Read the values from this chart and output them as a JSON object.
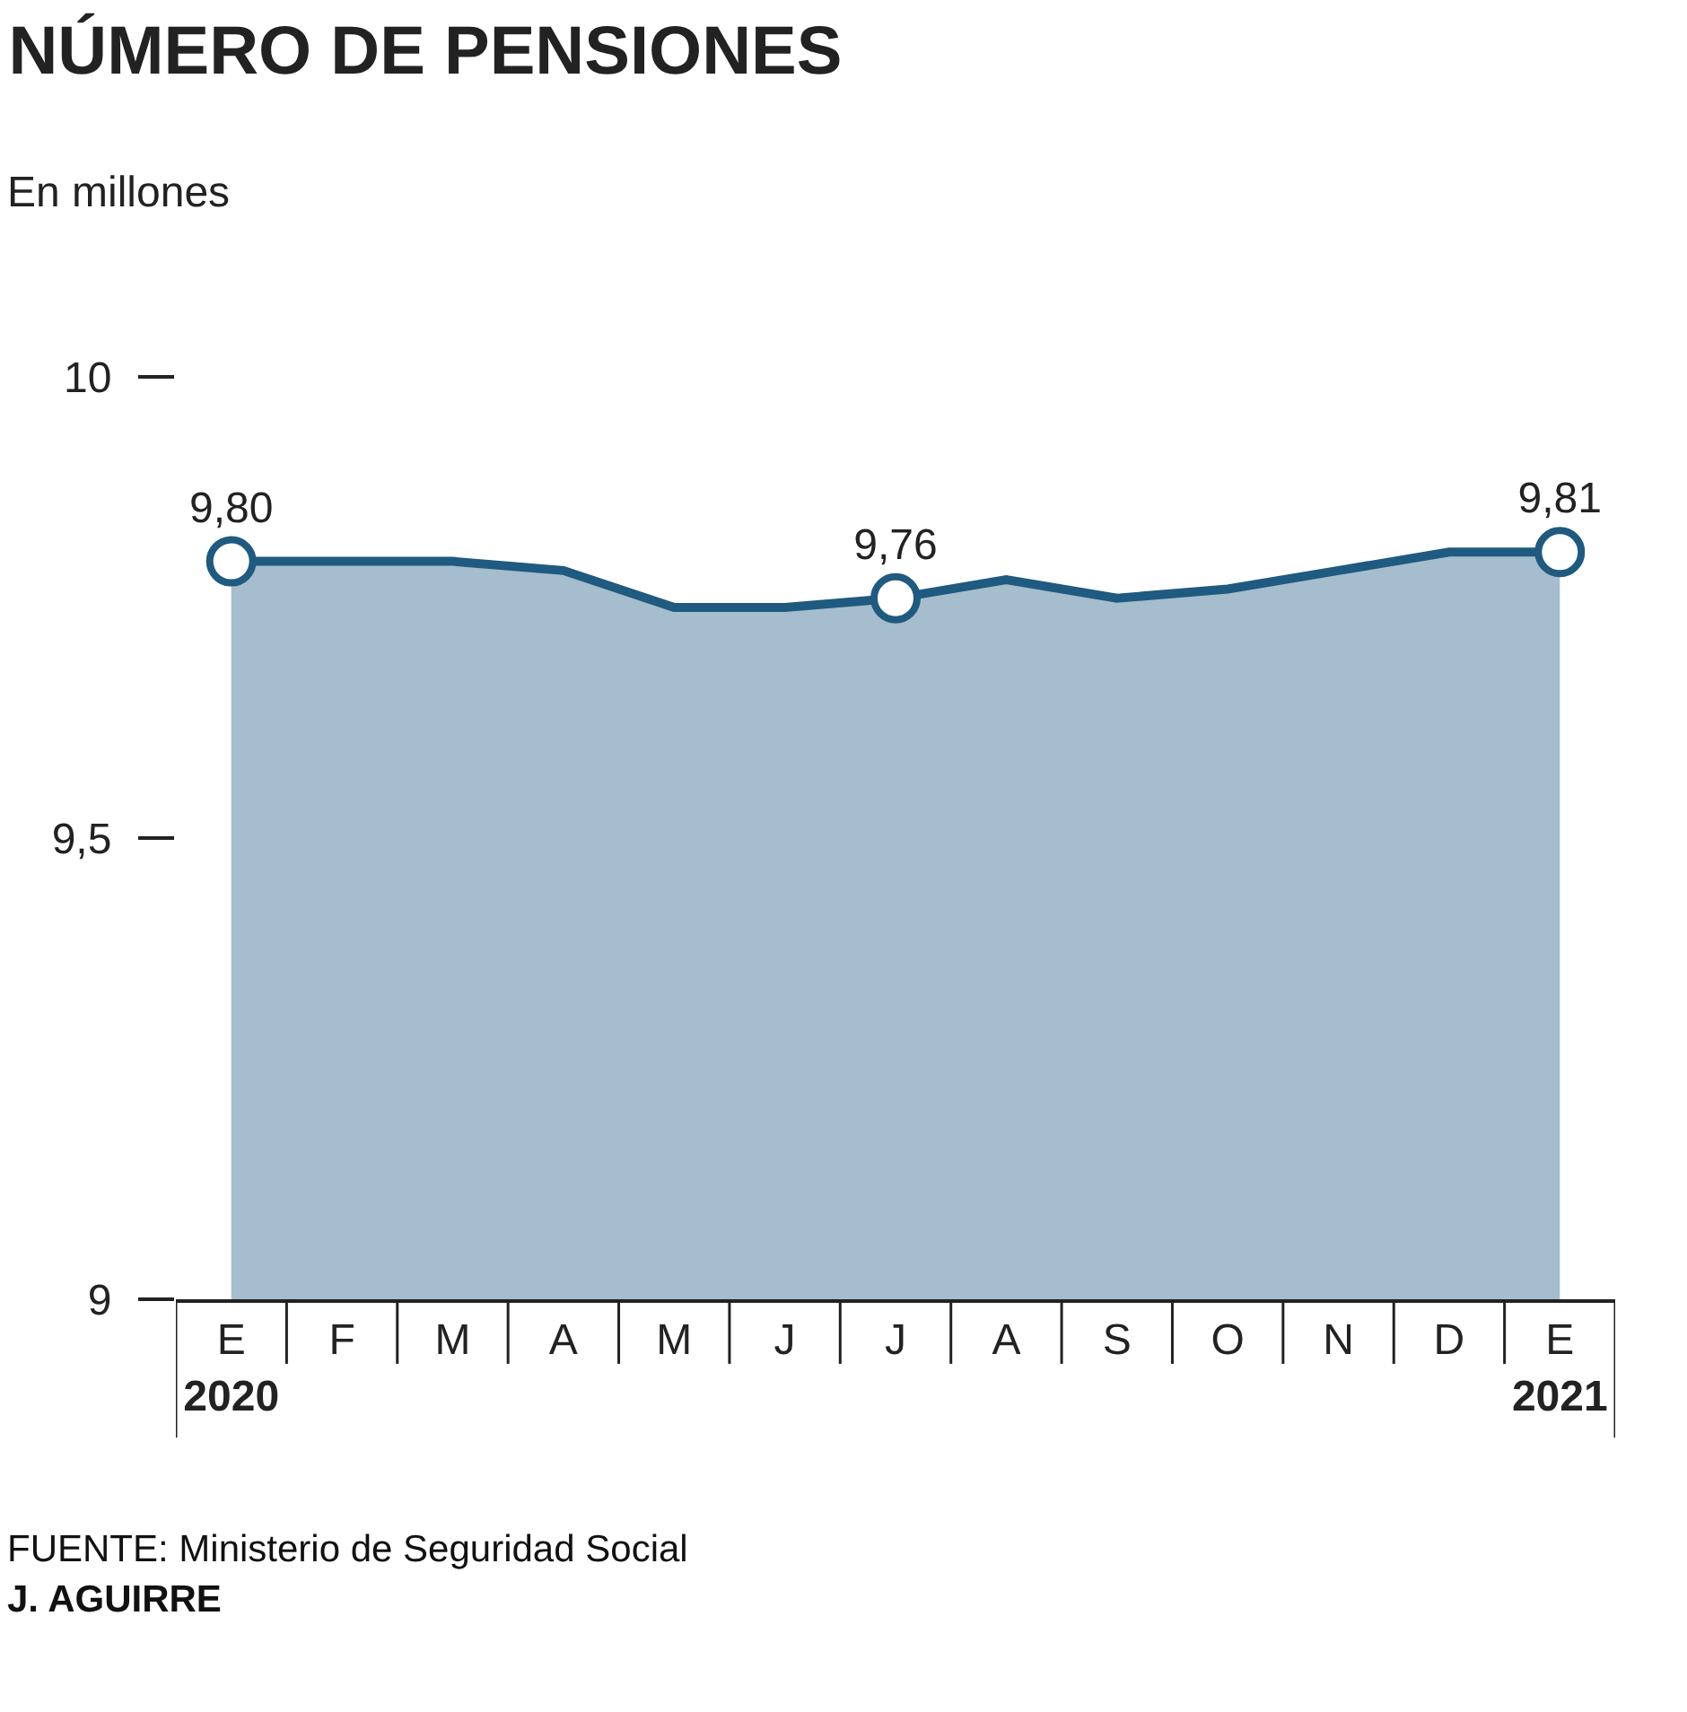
{
  "chart_data": {
    "type": "area",
    "title": "NÚMERO DE PENSIONES",
    "subtitle": "En millones",
    "categories": [
      "E\n2020",
      "F",
      "M",
      "A",
      "M",
      "J",
      "J",
      "A",
      "S",
      "O",
      "N",
      "D",
      "E\n2021"
    ],
    "series": [
      {
        "color": "#1f5a80",
        "values": [
          9.8,
          9.8,
          9.8,
          9.79,
          9.75,
          9.75,
          9.76,
          9.78,
          9.76,
          9.77,
          9.79,
          9.81,
          9.81
        ],
        "value_labels": [
          "9,80",
          null,
          null,
          null,
          null,
          null,
          "9,76",
          null,
          null,
          null,
          null,
          null,
          "9,81"
        ]
      }
    ],
    "ylim": [
      9,
      10
    ],
    "yticks": [
      9,
      {
        "value": 9.5,
        "label": "9,5"
      },
      10
    ],
    "grid": false,
    "annotations": [
      "FUENTE: Ministerio de Seguridad Social",
      "J. AGUIRRE"
    ]
  }
}
